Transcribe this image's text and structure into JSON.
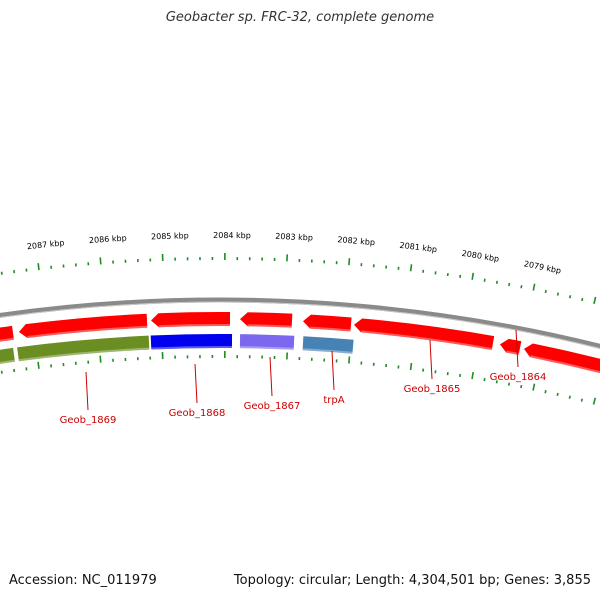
{
  "title": "Geobacter sp. FRC-32, complete genome",
  "footer": {
    "accession": "Accession: NC_011979",
    "summary": "Topology: circular; Length: 4,304,501 bp; Genes: 3,855"
  },
  "scale": {
    "labels": [
      "2087 kbp",
      "2086 kbp",
      "2085 kbp",
      "2084 kbp",
      "2083 kbp",
      "2082 kbp",
      "2081 kbp",
      "2080 kbp",
      "2079 kbp"
    ]
  },
  "genes": {
    "forward": [
      {
        "label": "",
        "color": "#ff0000"
      },
      {
        "label": "",
        "color": "#ff0000"
      },
      {
        "label": "",
        "color": "#ff0000"
      },
      {
        "label": "",
        "color": "#ff0000"
      },
      {
        "label": "",
        "color": "#ff0000"
      },
      {
        "label": "",
        "color": "#ff0000"
      },
      {
        "label": "",
        "color": "#ff0000"
      },
      {
        "label": "",
        "color": "#ff0000"
      }
    ],
    "reverse": [
      {
        "label": "",
        "color": "#6b8e23"
      },
      {
        "label": "",
        "color": "#6b8e23"
      },
      {
        "label": "",
        "color": "#0000ee"
      },
      {
        "label": "",
        "color": "#7b68ee"
      },
      {
        "label": "",
        "color": "#4682b4"
      }
    ],
    "labels": [
      "Geob_1869",
      "Geob_1868",
      "Geob_1867",
      "trpA",
      "Geob_1865",
      "Geob_1864"
    ]
  },
  "colors": {
    "backbone": "#8a8a8a",
    "ticks": "#228b22",
    "gene_label": "#cc0000"
  }
}
